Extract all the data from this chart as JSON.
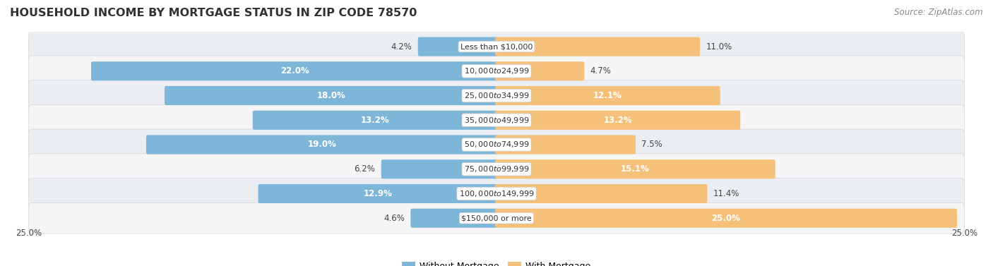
{
  "title": "HOUSEHOLD INCOME BY MORTGAGE STATUS IN ZIP CODE 78570",
  "source": "Source: ZipAtlas.com",
  "categories": [
    "Less than $10,000",
    "$10,000 to $24,999",
    "$25,000 to $34,999",
    "$35,000 to $49,999",
    "$50,000 to $74,999",
    "$75,000 to $99,999",
    "$100,000 to $149,999",
    "$150,000 or more"
  ],
  "without_mortgage": [
    4.2,
    22.0,
    18.0,
    13.2,
    19.0,
    6.2,
    12.9,
    4.6
  ],
  "with_mortgage": [
    11.0,
    4.7,
    12.1,
    13.2,
    7.5,
    15.1,
    11.4,
    25.0
  ],
  "blue_color": "#7EB6D9",
  "orange_color": "#F5C07A",
  "bg_outer": "#FFFFFF",
  "row_bg_odd": "#EAEEF2",
  "row_bg_even": "#F5F5F5",
  "axis_limit": 25.0,
  "title_fontsize": 11.5,
  "source_fontsize": 8.5,
  "bar_label_fontsize": 8.5,
  "category_fontsize": 8,
  "legend_fontsize": 9
}
